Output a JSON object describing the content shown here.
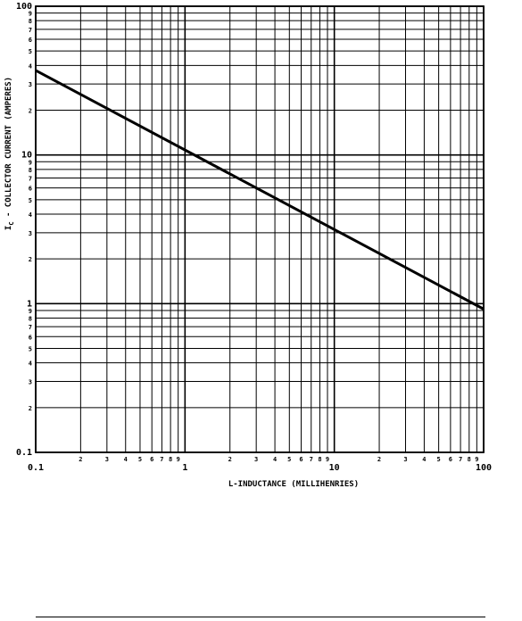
{
  "chart_data": {
    "type": "line",
    "title": "",
    "xlabel": "L-INDUCTANCE (MILLIHENRIES)",
    "ylabel_prefix": "I",
    "ylabel_subscript": "C",
    "ylabel_rest": " - COLLECTOR CURRENT (AMPERES)",
    "x_scale": "log",
    "y_scale": "log",
    "xlim": [
      0.1,
      100
    ],
    "ylim": [
      0.1,
      100
    ],
    "grid": true,
    "x_major_ticks": [
      {
        "value": 0.1,
        "label": "0.1"
      },
      {
        "value": 1,
        "label": "1"
      },
      {
        "value": 10,
        "label": "10"
      },
      {
        "value": 100,
        "label": "100"
      }
    ],
    "y_major_ticks": [
      {
        "value": 0.1,
        "label": "0.1"
      },
      {
        "value": 1,
        "label": "1"
      },
      {
        "value": 10,
        "label": "10"
      },
      {
        "value": 100,
        "label": "100"
      }
    ],
    "minor_tick_labels": [
      "2",
      "3",
      "4",
      "5",
      "6",
      "7",
      "8",
      "9"
    ],
    "series": [
      {
        "x": [
          0.1,
          100
        ],
        "y": [
          37,
          0.92
        ],
        "color": "#000000"
      }
    ]
  }
}
